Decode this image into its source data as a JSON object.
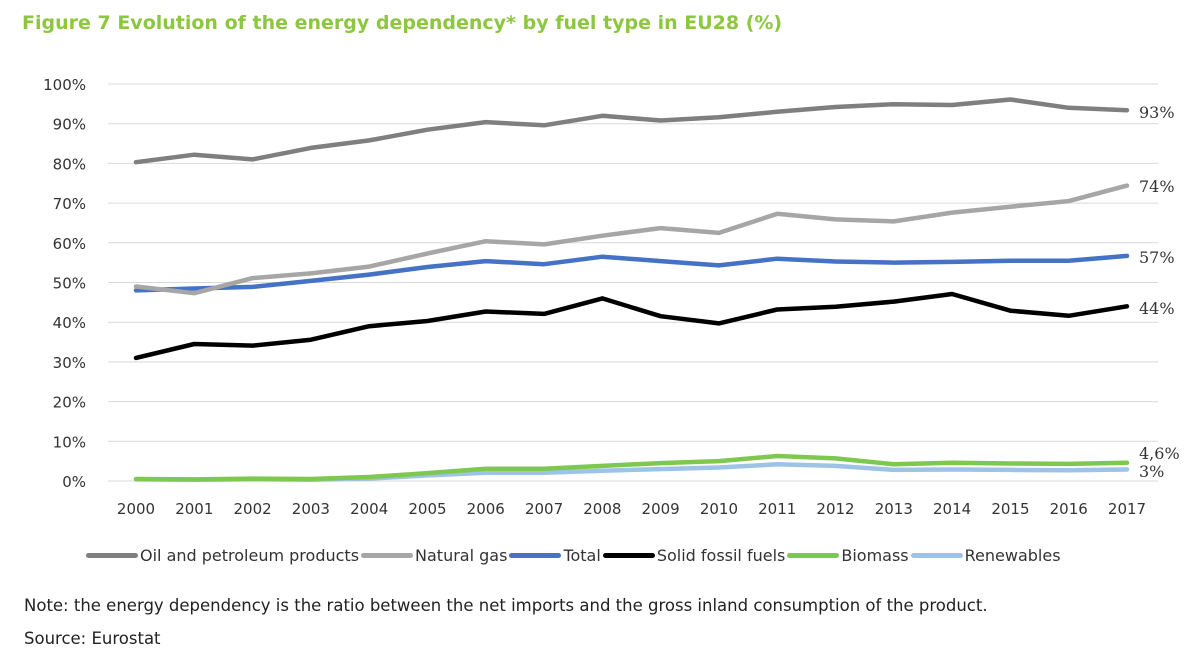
{
  "title": "Figure 7 Evolution of the energy dependency* by fuel type in EU28 (%)",
  "note": "Note: the energy dependency is the ratio between the net imports and the gross inland consumption of the product.",
  "source": "Source: Eurostat",
  "chart_data": {
    "type": "line",
    "title": "Figure 7 Evolution of the energy dependency* by fuel type in EU28 (%)",
    "xlabel": "",
    "ylabel": "",
    "ylim": [
      0,
      100
    ],
    "y_ticks": [
      "0%",
      "10%",
      "20%",
      "30%",
      "40%",
      "50%",
      "60%",
      "70%",
      "80%",
      "90%",
      "100%"
    ],
    "grid": "horizontal",
    "legend_position": "bottom",
    "x": [
      "2000",
      "2001",
      "2002",
      "2003",
      "2004",
      "2005",
      "2006",
      "2007",
      "2008",
      "2009",
      "2010",
      "2011",
      "2012",
      "2013",
      "2014",
      "2015",
      "2016",
      "2017"
    ],
    "series": [
      {
        "name": "Oil and petroleum products",
        "color": "#7f7f7f",
        "end_label": "93%",
        "values": [
          80.3,
          82.2,
          81.0,
          83.9,
          85.8,
          88.5,
          90.4,
          89.6,
          92.0,
          90.8,
          91.6,
          93.0,
          94.2,
          94.9,
          94.7,
          96.1,
          94.0,
          93.4
        ]
      },
      {
        "name": "Natural gas",
        "color": "#a6a6a6",
        "end_label": "74%",
        "values": [
          49.0,
          47.3,
          51.1,
          52.3,
          54.0,
          57.3,
          60.4,
          59.6,
          61.8,
          63.7,
          62.5,
          67.3,
          65.9,
          65.4,
          67.6,
          69.1,
          70.5,
          74.4
        ]
      },
      {
        "name": "Total",
        "color": "#4472c4",
        "end_label": "57%",
        "values": [
          48.0,
          48.5,
          48.9,
          50.4,
          52.0,
          53.9,
          55.4,
          54.6,
          56.5,
          55.4,
          54.3,
          56.0,
          55.3,
          55.0,
          55.2,
          55.5,
          55.5,
          56.7
        ]
      },
      {
        "name": "Solid fossil fuels",
        "color": "#000000",
        "end_label": "44%",
        "values": [
          31.0,
          34.5,
          34.1,
          35.6,
          39.0,
          40.3,
          42.7,
          42.1,
          46.0,
          41.5,
          39.7,
          43.2,
          43.9,
          45.2,
          47.1,
          42.9,
          41.6,
          44.0
        ]
      },
      {
        "name": "Biomass",
        "color": "#7ec850",
        "end_label": "4,6%",
        "values": [
          0.5,
          0.4,
          0.6,
          0.5,
          1.0,
          2.0,
          3.1,
          3.1,
          3.8,
          4.5,
          5.0,
          6.3,
          5.7,
          4.2,
          4.6,
          4.4,
          4.3,
          4.6
        ]
      },
      {
        "name": "Renewables",
        "color": "#9dc3e6",
        "end_label": "3%",
        "values": [
          0.4,
          0.3,
          0.4,
          0.3,
          0.6,
          1.4,
          2.1,
          2.1,
          2.6,
          3.0,
          3.4,
          4.2,
          3.8,
          2.8,
          2.9,
          2.8,
          2.7,
          2.9
        ]
      }
    ]
  }
}
